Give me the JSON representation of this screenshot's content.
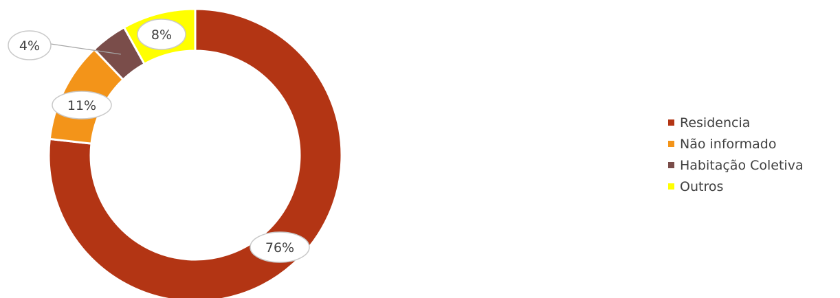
{
  "chart_data": {
    "type": "pie",
    "variant": "donut",
    "title": "",
    "series": [
      {
        "name": "Residencia",
        "value": 76,
        "label": "76%",
        "color": "#b33514"
      },
      {
        "name": "Não informado",
        "value": 11,
        "label": "11%",
        "color": "#f39419"
      },
      {
        "name": "Habitação Coletiva",
        "value": 4,
        "label": "4%",
        "color": "#7a4d4a"
      },
      {
        "name": "Outros",
        "value": 8,
        "label": "8%",
        "color": "#ffff00"
      }
    ],
    "start_angle_deg": 0,
    "direction": "clockwise",
    "legend_position": "right"
  }
}
